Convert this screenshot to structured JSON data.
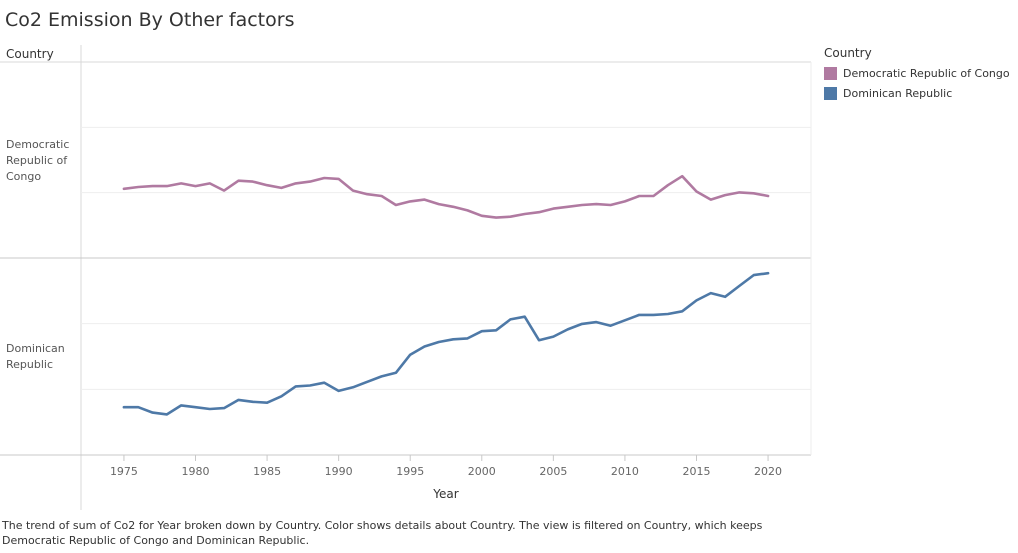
{
  "title": "Co2 Emission By Other factors",
  "row_header": "Country",
  "rows": [
    {
      "label_lines": [
        "Democratic",
        "Republic of",
        "Congo"
      ]
    },
    {
      "label_lines": [
        "Dominican",
        "Republic"
      ]
    }
  ],
  "legend": {
    "title": "Country",
    "items": [
      {
        "label": "Democratic Republic of Congo",
        "color": "#b07aa1"
      },
      {
        "label": "Dominican Republic",
        "color": "#4e79a7"
      }
    ]
  },
  "caption": "The trend of sum of Co2 for Year broken down by Country.  Color shows details about Country. The view is filtered on Country, which keeps Democratic Republic of Congo and Dominican Republic.",
  "chart_data": {
    "type": "line",
    "xlabel": "Year",
    "x_ticks": [
      1975,
      1980,
      1985,
      1990,
      1995,
      2000,
      2005,
      2010,
      2015,
      2020
    ],
    "xlim": [
      1972,
      2023
    ],
    "x": [
      1975,
      1976,
      1977,
      1978,
      1979,
      1980,
      1981,
      1982,
      1983,
      1984,
      1985,
      1986,
      1987,
      1988,
      1989,
      1990,
      1991,
      1992,
      1993,
      1994,
      1995,
      1996,
      1997,
      1998,
      1999,
      2000,
      2001,
      2002,
      2003,
      2004,
      2005,
      2006,
      2007,
      2008,
      2009,
      2010,
      2011,
      2012,
      2013,
      2014,
      2015,
      2016,
      2017,
      2018,
      2019,
      2020
    ],
    "layout": "small-multiples rows by Country, independent y-axes, no y tick labels",
    "series": [
      {
        "name": "Democratic Republic of Congo",
        "color": "#b07aa1",
        "ylim": [
          0,
          1
        ],
        "values": [
          0.34,
          0.35,
          0.355,
          0.355,
          0.37,
          0.355,
          0.37,
          0.33,
          0.385,
          0.38,
          0.36,
          0.345,
          0.37,
          0.38,
          0.4,
          0.395,
          0.33,
          0.31,
          0.3,
          0.25,
          0.27,
          0.28,
          0.255,
          0.24,
          0.22,
          0.19,
          0.18,
          0.185,
          0.2,
          0.21,
          0.23,
          0.24,
          0.25,
          0.255,
          0.25,
          0.27,
          0.3,
          0.3,
          0.36,
          0.41,
          0.325,
          0.28,
          0.305,
          0.32,
          0.315,
          0.3
        ]
      },
      {
        "name": "Dominican Republic",
        "color": "#4e79a7",
        "ylim": [
          0,
          1
        ],
        "values": [
          0.22,
          0.22,
          0.19,
          0.18,
          0.23,
          0.22,
          0.21,
          0.215,
          0.26,
          0.25,
          0.245,
          0.28,
          0.335,
          0.34,
          0.355,
          0.31,
          0.33,
          0.36,
          0.39,
          0.41,
          0.51,
          0.555,
          0.58,
          0.595,
          0.6,
          0.64,
          0.645,
          0.705,
          0.72,
          0.59,
          0.61,
          0.65,
          0.68,
          0.69,
          0.67,
          0.7,
          0.73,
          0.73,
          0.735,
          0.75,
          0.81,
          0.85,
          0.83,
          0.89,
          0.95,
          0.96
        ]
      }
    ]
  }
}
